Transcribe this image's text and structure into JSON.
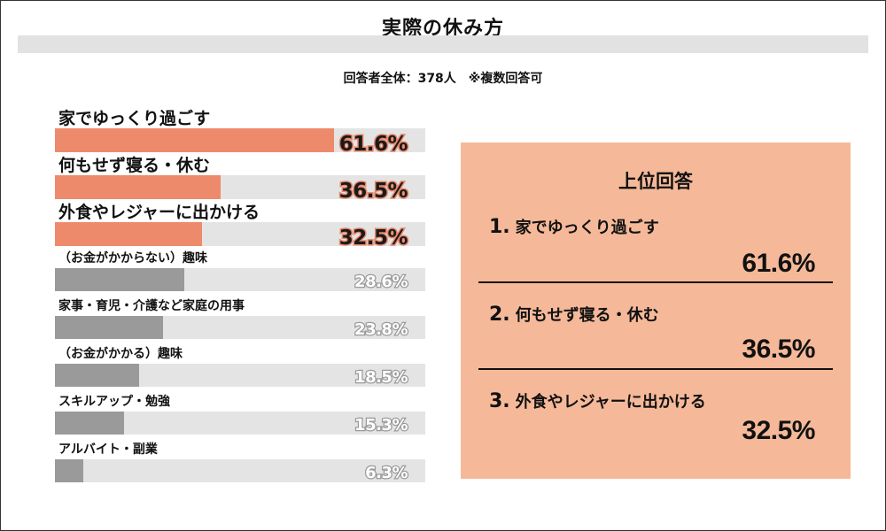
{
  "title": "実際の休み方",
  "subtitle": "回答者全体：378人　※複数回答可",
  "colors": {
    "highlight": "#ee8a6c",
    "other": "#9a9a9a",
    "track": "#e4e4e4",
    "summary_bg": "#f5b999"
  },
  "chart_data": {
    "type": "bar",
    "orientation": "horizontal",
    "xlim": [
      0,
      100
    ],
    "categories": [
      "家でゆっくり過ごす",
      "何もせず寝る・休む",
      "外食やレジャーに出かける",
      "（お金がかからない）趣味",
      "家事・育児・介護など家庭の用事",
      "（お金がかかる）趣味",
      "スキルアップ・勉強",
      "アルバイト・副業"
    ],
    "values": [
      61.6,
      36.5,
      32.5,
      28.6,
      23.8,
      18.5,
      15.3,
      6.3
    ],
    "value_labels": [
      "61.6%",
      "36.5%",
      "32.5%",
      "28.6%",
      "23.8%",
      "18.5%",
      "15.3%",
      "6.3%"
    ],
    "highlighted_count": 3
  },
  "summary": {
    "heading": "上位回答",
    "items": [
      {
        "rank": "1.",
        "label": "家でゆっくり過ごす",
        "value": "61.6%"
      },
      {
        "rank": "2.",
        "label": "何もせず寝る・休む",
        "value": "36.5%"
      },
      {
        "rank": "3.",
        "label": "外食やレジャーに出かける",
        "value": "32.5%"
      }
    ]
  }
}
